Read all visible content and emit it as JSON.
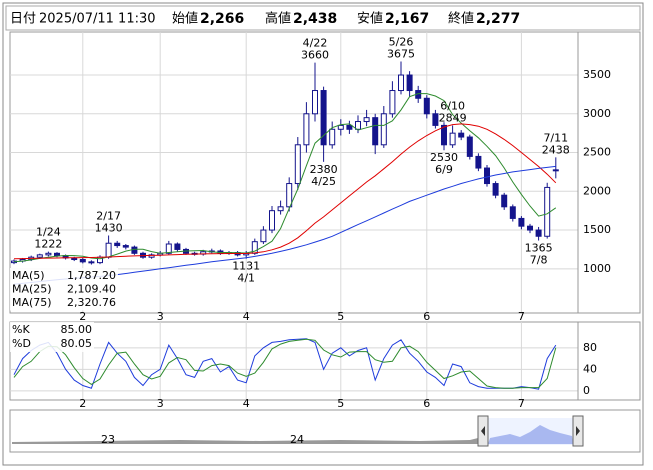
{
  "header": {
    "date_label": "日付",
    "date": "2025/07/11 11:30",
    "items": [
      {
        "label": "始値",
        "value": "2,266",
        "color": "#000000"
      },
      {
        "label": "高値",
        "value": "2,438",
        "color": "#e00000"
      },
      {
        "label": "安値",
        "value": "2,167",
        "color": "#008000"
      },
      {
        "label": "終値",
        "value": "2,277",
        "color": "#000000"
      }
    ]
  },
  "chart_data": [
    {
      "type": "candlestick",
      "categories": [
        null,
        null,
        null,
        null,
        null,
        null,
        null,
        null,
        "2",
        null,
        null,
        null,
        null,
        null,
        null,
        null,
        null,
        "3",
        null,
        null,
        null,
        null,
        null,
        null,
        null,
        null,
        null,
        "4",
        null,
        null,
        null,
        null,
        null,
        null,
        null,
        null,
        null,
        null,
        "5",
        null,
        null,
        null,
        null,
        null,
        null,
        null,
        null,
        null,
        "6",
        null,
        null,
        null,
        null,
        null,
        null,
        null,
        null,
        null,
        null,
        "7",
        null,
        null,
        null,
        null
      ],
      "open": [
        1080,
        1100,
        1120,
        1150,
        1180,
        1200,
        1170,
        1140,
        1120,
        1090,
        1080,
        1150,
        1330,
        1300,
        1280,
        1200,
        1150,
        1180,
        1200,
        1320,
        1250,
        1200,
        1190,
        1220,
        1230,
        1200,
        1210,
        1180,
        1200,
        1350,
        1500,
        1750,
        1800,
        2100,
        2600,
        3000,
        3300,
        2600,
        2800,
        2850,
        2800,
        2900,
        2950,
        2600,
        3000,
        3300,
        3500,
        3300,
        3200,
        3000,
        2850,
        2600,
        2750,
        2700,
        2450,
        2300,
        2100,
        1950,
        1800,
        1650,
        1550,
        1500,
        1420,
        2266
      ],
      "high": [
        1120,
        1140,
        1170,
        1195,
        1222,
        1215,
        1185,
        1155,
        1140,
        1110,
        1175,
        1430,
        1360,
        1320,
        1300,
        1220,
        1200,
        1230,
        1360,
        1340,
        1270,
        1220,
        1245,
        1260,
        1250,
        1230,
        1230,
        1230,
        1390,
        1550,
        1810,
        1880,
        2180,
        2700,
        3150,
        3660,
        3350,
        2900,
        2930,
        2910,
        2980,
        3050,
        3000,
        3100,
        3420,
        3675,
        3550,
        3360,
        3240,
        3050,
        2890,
        2849,
        2790,
        2730,
        2490,
        2340,
        2130,
        1980,
        1830,
        1680,
        1580,
        1540,
        2110,
        2438
      ],
      "low": [
        1060,
        1080,
        1100,
        1130,
        1160,
        1150,
        1120,
        1100,
        1070,
        1055,
        1060,
        1130,
        1270,
        1250,
        1180,
        1130,
        1130,
        1160,
        1180,
        1220,
        1180,
        1170,
        1170,
        1200,
        1180,
        1180,
        1160,
        1131,
        1180,
        1320,
        1460,
        1700,
        1740,
        2020,
        2500,
        2900,
        2380,
        2550,
        2720,
        2740,
        2750,
        2840,
        2480,
        2560,
        2950,
        3250,
        3220,
        3140,
        2940,
        2810,
        2530,
        2560,
        2660,
        2410,
        2260,
        2060,
        1910,
        1760,
        1610,
        1510,
        1460,
        1365,
        1390,
        2167
      ],
      "close": [
        1100,
        1120,
        1150,
        1180,
        1200,
        1170,
        1140,
        1120,
        1090,
        1080,
        1150,
        1330,
        1300,
        1280,
        1200,
        1150,
        1180,
        1200,
        1320,
        1250,
        1200,
        1190,
        1220,
        1230,
        1200,
        1210,
        1180,
        1200,
        1350,
        1500,
        1750,
        1800,
        2100,
        2600,
        3000,
        3300,
        2600,
        2800,
        2850,
        2800,
        2900,
        2950,
        2600,
        3000,
        3300,
        3500,
        3300,
        3200,
        3000,
        2850,
        2600,
        2750,
        2700,
        2450,
        2300,
        2100,
        1950,
        1800,
        1650,
        1550,
        1500,
        1420,
        2050,
        2277
      ],
      "color": "#14148c",
      "overlays": [
        {
          "name": "MA(5)",
          "color": "#2e8b2e",
          "last_label": "1,787.20",
          "values": [
            1090,
            1100,
            1115,
            1135,
            1150,
            1164,
            1172,
            1170,
            1162,
            1140,
            1130,
            1154,
            1190,
            1228,
            1252,
            1252,
            1222,
            1202,
            1210,
            1220,
            1230,
            1232,
            1236,
            1218,
            1210,
            1210,
            1208,
            1204,
            1228,
            1286,
            1356,
            1520,
            1780,
            2030,
            2330,
            2620,
            2720,
            2820,
            2860,
            2870,
            2790,
            2820,
            2850,
            2850,
            2910,
            3050,
            3220,
            3260,
            3260,
            3230,
            3170,
            2990,
            2880,
            2780,
            2690,
            2580,
            2460,
            2300,
            2120,
            1960,
            1810,
            1680,
            1710,
            1787.2
          ]
        },
        {
          "name": "MA(25)",
          "color": "#e00000",
          "last_label": "2,109.40",
          "values": [
            1130,
            1132,
            1134,
            1136,
            1138,
            1140,
            1142,
            1144,
            1145,
            1146,
            1148,
            1152,
            1158,
            1163,
            1167,
            1170,
            1173,
            1176,
            1180,
            1184,
            1187,
            1190,
            1192,
            1194,
            1196,
            1197,
            1198,
            1198,
            1205,
            1220,
            1245,
            1280,
            1330,
            1400,
            1490,
            1590,
            1670,
            1760,
            1850,
            1940,
            2030,
            2120,
            2200,
            2290,
            2380,
            2480,
            2570,
            2650,
            2720,
            2780,
            2830,
            2860,
            2870,
            2860,
            2840,
            2800,
            2740,
            2670,
            2590,
            2500,
            2410,
            2320,
            2220,
            2109.4
          ]
        },
        {
          "name": "MA(75)",
          "color": "#1e3cdc",
          "last_label": "2,320.76",
          "values": [
            800,
            812,
            824,
            836,
            848,
            858,
            868,
            878,
            886,
            894,
            902,
            912,
            925,
            940,
            955,
            970,
            985,
            1000,
            1015,
            1030,
            1045,
            1060,
            1075,
            1090,
            1105,
            1118,
            1130,
            1142,
            1160,
            1180,
            1200,
            1225,
            1250,
            1280,
            1310,
            1345,
            1380,
            1420,
            1470,
            1520,
            1570,
            1620,
            1670,
            1720,
            1770,
            1820,
            1870,
            1910,
            1950,
            1990,
            2030,
            2065,
            2100,
            2130,
            2160,
            2185,
            2210,
            2230,
            2250,
            2265,
            2280,
            2295,
            2308,
            2320.76
          ]
        }
      ],
      "annotations": [
        {
          "date": "1/24",
          "value": 1222
        },
        {
          "date": "2/17",
          "value": 1430
        },
        {
          "date": "4/1",
          "value": 1131
        },
        {
          "date": "4/22",
          "value": 3660
        },
        {
          "date": "4/25",
          "value": 2380
        },
        {
          "date": "5/26",
          "value": 3675
        },
        {
          "date": "6/9",
          "value": 2530
        },
        {
          "date": "6/10",
          "value": 2849
        },
        {
          "date": "7/8",
          "value": 1365
        },
        {
          "date": "7/11",
          "value": 2438
        }
      ],
      "ylim": [
        430,
        4055
      ],
      "yticks": [
        1000,
        1500,
        2000,
        2500,
        3000,
        3500
      ],
      "grid": true
    },
    {
      "type": "line",
      "categories": [
        null,
        null,
        null,
        null,
        null,
        null,
        null,
        null,
        "2",
        null,
        null,
        null,
        null,
        null,
        null,
        null,
        null,
        "3",
        null,
        null,
        null,
        null,
        null,
        null,
        null,
        null,
        null,
        "4",
        null,
        null,
        null,
        null,
        null,
        null,
        null,
        null,
        null,
        null,
        "5",
        null,
        null,
        null,
        null,
        null,
        null,
        null,
        null,
        null,
        "6",
        null,
        null,
        null,
        null,
        null,
        null,
        null,
        null,
        null,
        null,
        "7",
        null,
        null,
        null,
        null
      ],
      "series": [
        {
          "name": "%K",
          "color": "#1e3cdc",
          "last_label": "85.00",
          "values": [
            30,
            60,
            75,
            85,
            90,
            70,
            40,
            20,
            10,
            5,
            50,
            90,
            70,
            55,
            25,
            10,
            30,
            40,
            85,
            60,
            30,
            25,
            55,
            60,
            35,
            45,
            20,
            15,
            65,
            80,
            90,
            92,
            95,
            96,
            97,
            90,
            40,
            70,
            80,
            65,
            75,
            80,
            20,
            60,
            85,
            95,
            70,
            55,
            35,
            25,
            10,
            50,
            45,
            15,
            8,
            5,
            5,
            5,
            5,
            8,
            6,
            3,
            60,
            85
          ]
        },
        {
          "name": "%D",
          "color": "#2e8b2e",
          "last_label": "80.05",
          "values": [
            25,
            45,
            55,
            73,
            83,
            82,
            67,
            43,
            23,
            12,
            22,
            48,
            70,
            72,
            50,
            30,
            22,
            27,
            52,
            62,
            58,
            38,
            37,
            47,
            50,
            47,
            33,
            27,
            33,
            53,
            78,
            87,
            92,
            94,
            96,
            94,
            76,
            67,
            63,
            72,
            73,
            73,
            58,
            53,
            55,
            80,
            83,
            73,
            53,
            38,
            23,
            28,
            35,
            37,
            23,
            9,
            6,
            5,
            5,
            6,
            6,
            6,
            23,
            80.05
          ]
        }
      ],
      "ylim": [
        -17,
        128
      ],
      "yticks": [
        0,
        40,
        80
      ],
      "grid": true
    }
  ],
  "navigator": {
    "labels": [
      "23",
      "24"
    ]
  }
}
